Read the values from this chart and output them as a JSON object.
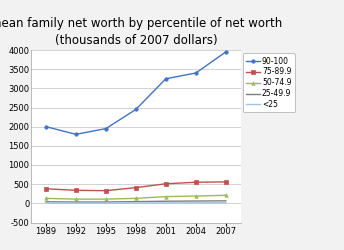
{
  "title": "mean family net worth by percentile of net worth",
  "subtitle": "(thousands of 2007 dollars)",
  "years": [
    1989,
    1992,
    1995,
    1998,
    2001,
    2004,
    2007
  ],
  "series": [
    {
      "label": "90-100",
      "color": "#4472C4",
      "marker": "o",
      "values": [
        2000,
        1800,
        1950,
        2450,
        3250,
        3400,
        3950
      ]
    },
    {
      "label": "75-89.9",
      "color": "#C0504D",
      "marker": "s",
      "values": [
        380,
        340,
        330,
        410,
        510,
        550,
        560
      ]
    },
    {
      "label": "50-74.9",
      "color": "#9BBB59",
      "marker": "^",
      "values": [
        130,
        110,
        110,
        130,
        175,
        190,
        210
      ]
    },
    {
      "label": "25-49.9",
      "color": "#7F7F7F",
      "marker": "None",
      "values": [
        40,
        35,
        35,
        45,
        55,
        60,
        65
      ]
    },
    {
      "label": "<25",
      "color": "#9DC3E6",
      "marker": "None",
      "values": [
        10,
        5,
        5,
        8,
        10,
        12,
        15
      ]
    }
  ],
  "ylim": [
    -500,
    4000
  ],
  "yticks": [
    -500,
    0,
    500,
    1000,
    1500,
    2000,
    2500,
    3000,
    3500,
    4000
  ],
  "background_color": "#F2F2F2",
  "plot_bg_color": "#FFFFFF",
  "grid_color": "#C0C0C0",
  "title_fontsize": 8.5,
  "subtitle_fontsize": 7.5,
  "legend_fontsize": 5.5,
  "tick_fontsize": 6
}
